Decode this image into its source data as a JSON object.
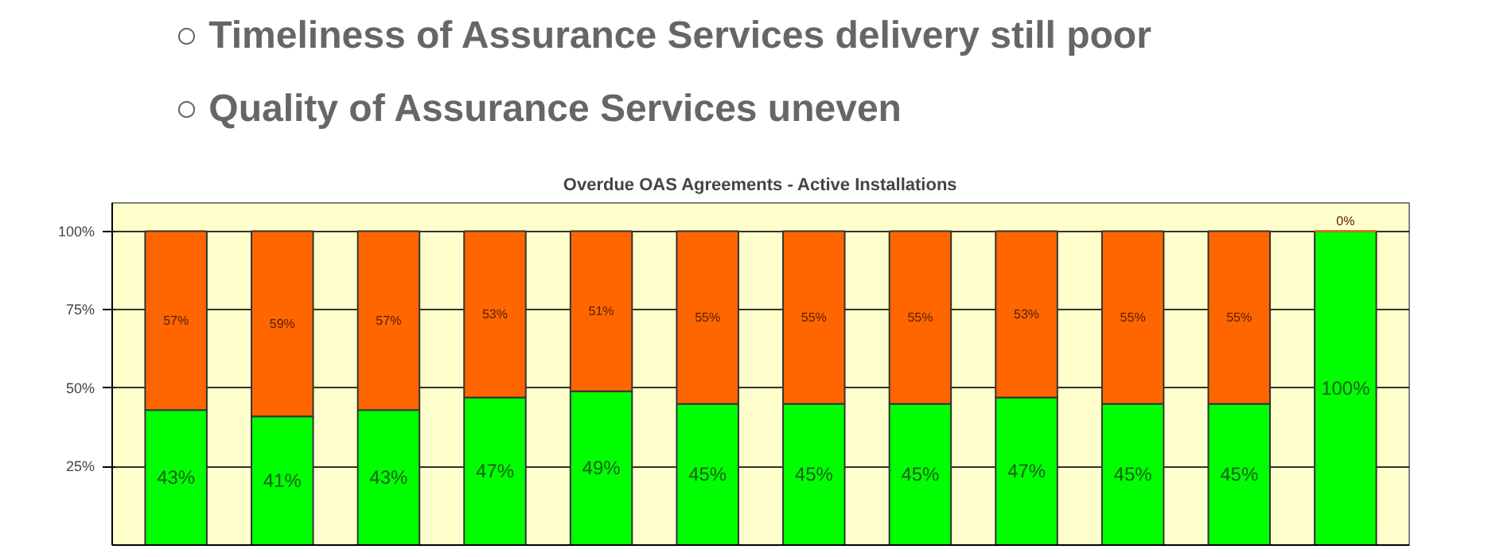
{
  "chart_data": {
    "type": "bar",
    "stacked": true,
    "title": "Overdue OAS Agreements - Active Installations",
    "annotations": [
      "○ Timeliness of Assurance Services delivery still poor",
      "○ Quality of Assurance Services uneven"
    ],
    "categories": [
      null,
      null,
      null,
      null,
      null,
      null,
      null,
      null,
      null,
      null,
      null,
      null
    ],
    "series": [
      {
        "color": "#00ff00",
        "values": [
          43,
          41,
          43,
          47,
          49,
          45,
          45,
          45,
          47,
          45,
          45,
          100
        ],
        "value_labels": [
          "43%",
          "41%",
          "43%",
          "47%",
          "49%",
          "45%",
          "45%",
          "45%",
          "47%",
          "45%",
          "45%",
          "100%"
        ]
      },
      {
        "color": "#ff6600",
        "values": [
          57,
          59,
          57,
          53,
          51,
          55,
          55,
          55,
          53,
          55,
          55,
          0
        ],
        "value_labels": [
          "57%",
          "59%",
          "57%",
          "53%",
          "51%",
          "55%",
          "55%",
          "55%",
          "53%",
          "55%",
          "55%",
          "0%"
        ]
      }
    ],
    "ylim": [
      0,
      109
    ],
    "yticks": [
      {
        "value": 25,
        "label": "25%"
      },
      {
        "value": 50,
        "label": "50%"
      },
      {
        "value": 75,
        "label": "75%"
      },
      {
        "value": 100,
        "label": "100%"
      }
    ],
    "grid": "y"
  }
}
